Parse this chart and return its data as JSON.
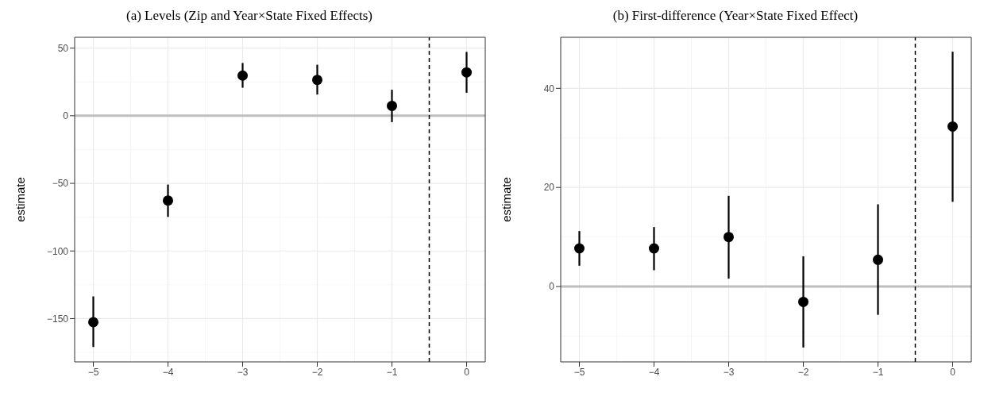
{
  "chart_data": [
    {
      "type": "scatter",
      "title": "(a) Levels (Zip and Year×State Fixed Effects)",
      "ylabel": "estimate",
      "x": [
        -5,
        -4,
        -3,
        -2,
        -1,
        0
      ],
      "xlim": [
        -5.25,
        0.25
      ],
      "xticks": [
        -5,
        -4,
        -3,
        -2,
        -1,
        0
      ],
      "ylim": [
        -182,
        58
      ],
      "yticks": [
        -150,
        -100,
        -50,
        0,
        50
      ],
      "grid": true,
      "marker": "circle",
      "legend": false,
      "series": [
        {
          "color": "#000000",
          "values": [
            -152.6,
            -62.7,
            29.7,
            26.5,
            7.3,
            32.1
          ],
          "errors": [
            [
              -171,
              -133.6
            ],
            [
              -74.8,
              -50.9
            ],
            [
              20.7,
              39
            ],
            [
              15.7,
              37.7
            ],
            [
              -4.7,
              19.2
            ],
            [
              17,
              47.2
            ]
          ]
        }
      ],
      "ref_lines": [
        {
          "axis": "y",
          "value": 0,
          "color": "#bebebe",
          "line_style": "solid"
        },
        {
          "axis": "x",
          "value": -0.5,
          "color": "#000000",
          "line_style": "dashed"
        }
      ]
    },
    {
      "type": "scatter",
      "title": "(b) First-difference (Year×State Fixed Effect)",
      "ylabel": "estimate",
      "x": [
        -5,
        -4,
        -3,
        -2,
        -1,
        0
      ],
      "xlim": [
        -5.25,
        0.25
      ],
      "xticks": [
        -5,
        -4,
        -3,
        -2,
        -1,
        0
      ],
      "ylim": [
        -15.2,
        50.3
      ],
      "yticks": [
        0,
        20,
        40
      ],
      "grid": true,
      "marker": "circle",
      "legend": false,
      "series": [
        {
          "color": "#000000",
          "values": [
            7.7,
            7.7,
            10.0,
            -3.1,
            5.4,
            32.3
          ],
          "errors": [
            [
              4.2,
              11.2
            ],
            [
              3.3,
              12.0
            ],
            [
              1.6,
              18.3
            ],
            [
              -12.3,
              6.1
            ],
            [
              -5.7,
              16.6
            ],
            [
              17.1,
              47.4
            ]
          ]
        }
      ],
      "ref_lines": [
        {
          "axis": "y",
          "value": 0,
          "color": "#bebebe",
          "line_style": "solid"
        },
        {
          "axis": "x",
          "value": -0.5,
          "color": "#000000",
          "line_style": "dashed"
        }
      ]
    }
  ]
}
